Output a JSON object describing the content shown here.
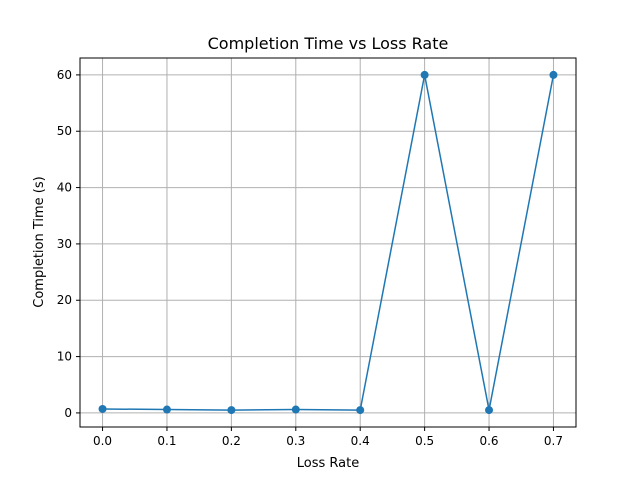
{
  "chart_data": {
    "type": "line",
    "title": "Completion Time vs Loss Rate",
    "xlabel": "Loss Rate",
    "ylabel": "Completion Time (s)",
    "x": [
      0.0,
      0.1,
      0.2,
      0.3,
      0.4,
      0.5,
      0.6,
      0.7
    ],
    "series": [
      {
        "values": [
          0.7,
          0.6,
          0.5,
          0.6,
          0.5,
          60.0,
          0.5,
          60.0
        ],
        "color": "#1f77b4",
        "marker": "circle"
      }
    ],
    "xticks": [
      "0.0",
      "0.1",
      "0.2",
      "0.3",
      "0.4",
      "0.5",
      "0.6",
      "0.7"
    ],
    "yticks": [
      "0",
      "10",
      "20",
      "30",
      "40",
      "50",
      "60"
    ],
    "xlim": [
      -0.035,
      0.735
    ],
    "ylim": [
      -2.5,
      63
    ],
    "grid": true,
    "legend": "none"
  }
}
